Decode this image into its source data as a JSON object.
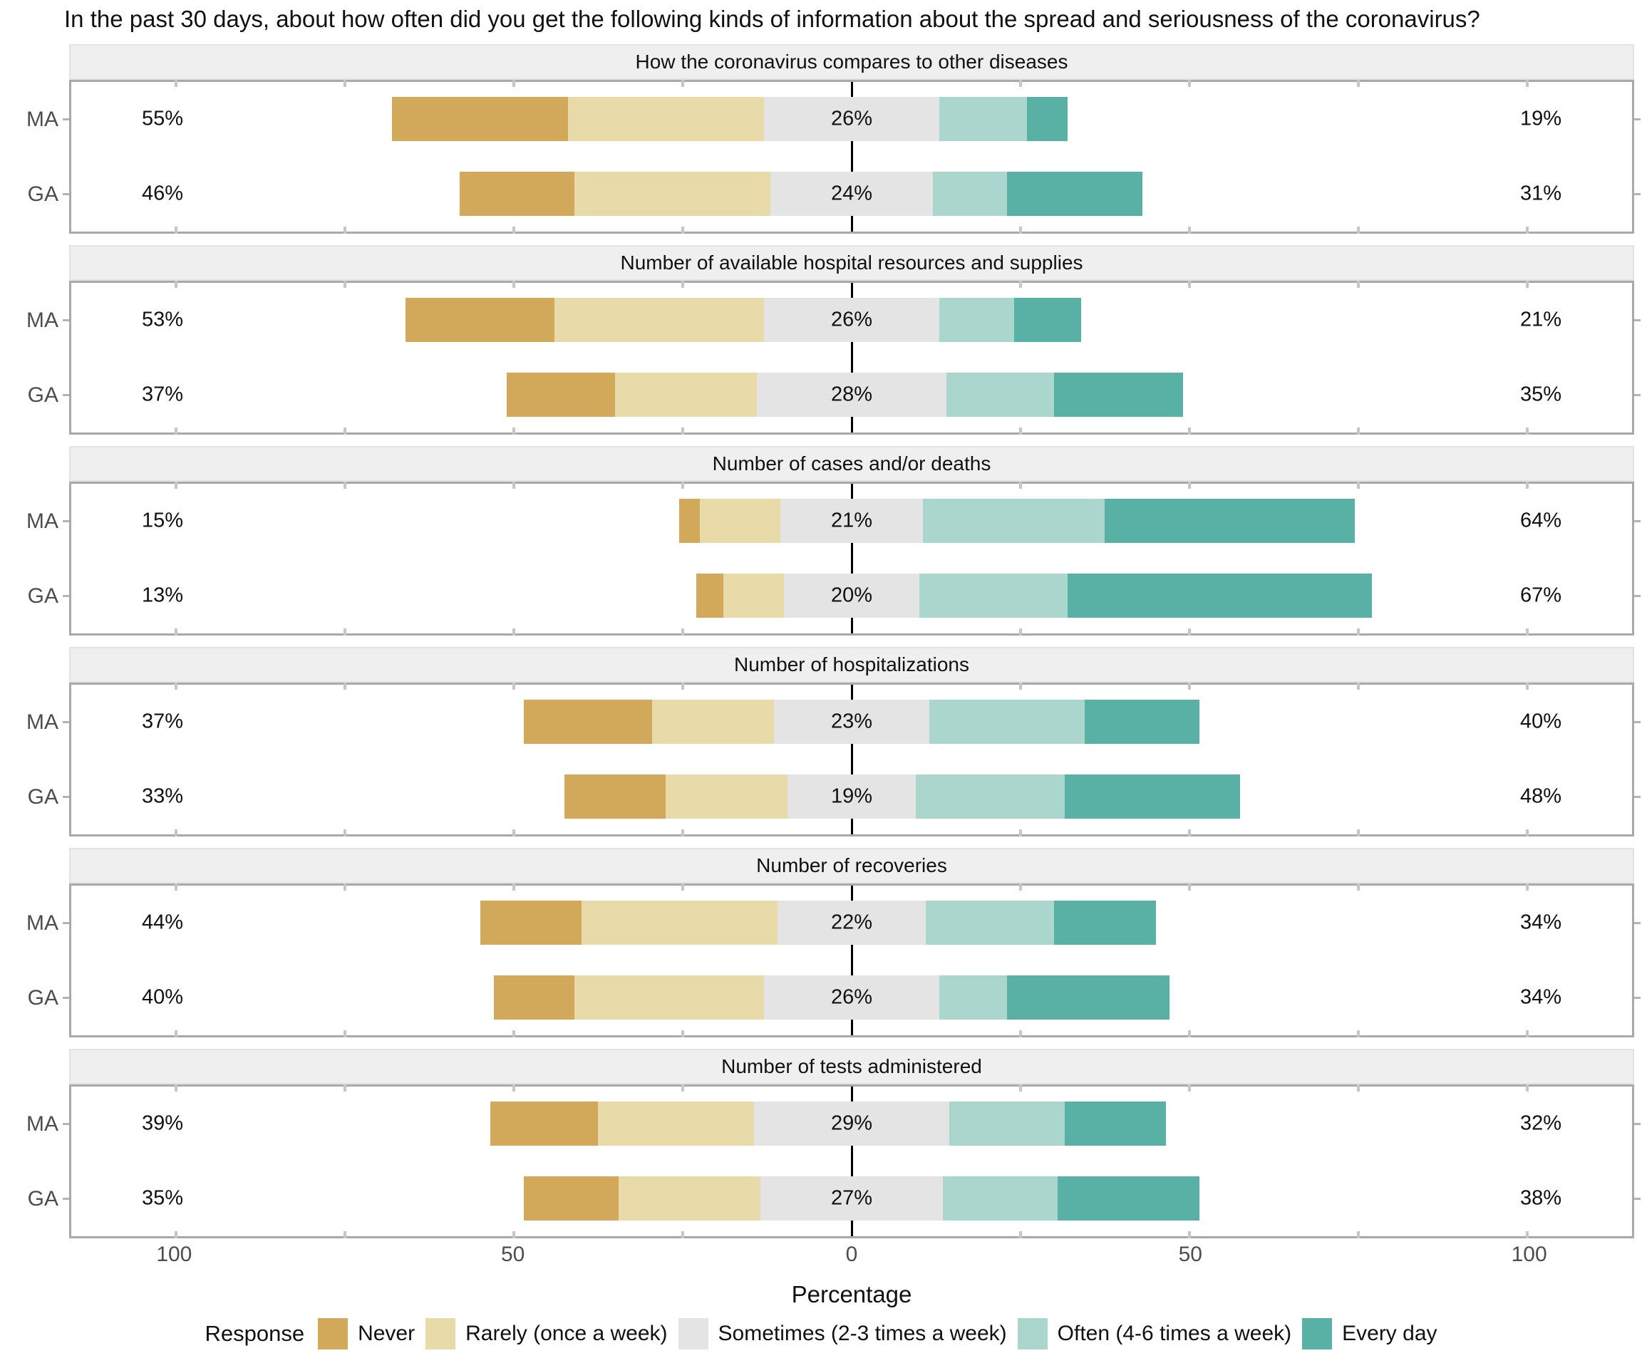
{
  "title": "In the past 30 days, about how often did you get the following kinds of information about the spread and seriousness of the coronavirus?",
  "legend": {
    "title": "Response",
    "items": [
      {
        "label": "Never",
        "color": "#D2A85A",
        "slug": "never"
      },
      {
        "label": "Rarely (once a week)",
        "color": "#E9DBA9",
        "slug": "rarely"
      },
      {
        "label": "Sometimes (2-3 times a week)",
        "color": "#E4E4E5",
        "slug": "sometimes"
      },
      {
        "label": "Often (4-6 times a week)",
        "color": "#ABD6CE",
        "slug": "often"
      },
      {
        "label": "Every day",
        "color": "#58B1A4",
        "slug": "every-day"
      }
    ]
  },
  "colors": {
    "panel_border": "#A9A9A9",
    "strip_background": "#EFEFEF",
    "axis_text": "#4D4D4D",
    "zero_line": "#000000",
    "tick_break": "#C6C6C6"
  },
  "chart_data": {
    "type": "bar",
    "subtype": "diverging_stacked_likert",
    "note": "Neutral category (Sometimes) is centered on 0; left % = Never+Rarely, right % = Often+Every day",
    "response_levels": [
      "Never",
      "Rarely (once a week)",
      "Sometimes (2-3 times a week)",
      "Often (4-6 times a week)",
      "Every day"
    ],
    "groups": [
      "MA",
      "GA"
    ],
    "xlabel": "Percentage",
    "xlim": [
      -115.5,
      115.5
    ],
    "x_ticks": [
      -100,
      -50,
      0,
      50,
      100
    ],
    "x_tick_labels": [
      "100",
      "50",
      "0",
      "50",
      "100"
    ],
    "border_ticks": [
      -100,
      -75,
      -50,
      -25,
      25,
      50,
      75,
      100
    ],
    "label_positions": {
      "left": -102,
      "center": 0,
      "right": 102
    },
    "panels": [
      {
        "title": "How the coronavirus compares to other diseases",
        "rows": [
          {
            "group": "MA",
            "values": [
              26,
              29,
              26,
              13,
              6
            ],
            "labels": {
              "left": "55%",
              "center": "26%",
              "right": "19%"
            }
          },
          {
            "group": "GA",
            "values": [
              17,
              29,
              24,
              11,
              20
            ],
            "labels": {
              "left": "46%",
              "center": "24%",
              "right": "31%"
            }
          }
        ]
      },
      {
        "title": "Number of available hospital resources and supplies",
        "rows": [
          {
            "group": "MA",
            "values": [
              22,
              31,
              26,
              11,
              10
            ],
            "labels": {
              "left": "53%",
              "center": "26%",
              "right": "21%"
            }
          },
          {
            "group": "GA",
            "values": [
              16,
              21,
              28,
              16,
              19
            ],
            "labels": {
              "left": "37%",
              "center": "28%",
              "right": "35%"
            }
          }
        ]
      },
      {
        "title": "Number of cases and/or deaths",
        "rows": [
          {
            "group": "MA",
            "values": [
              3,
              12,
              21,
              27,
              37
            ],
            "labels": {
              "left": "15%",
              "center": "21%",
              "right": "64%"
            }
          },
          {
            "group": "GA",
            "values": [
              4,
              9,
              20,
              22,
              45
            ],
            "labels": {
              "left": "13%",
              "center": "20%",
              "right": "67%"
            }
          }
        ]
      },
      {
        "title": "Number of hospitalizations",
        "rows": [
          {
            "group": "MA",
            "values": [
              19,
              18,
              23,
              23,
              17
            ],
            "labels": {
              "left": "37%",
              "center": "23%",
              "right": "40%"
            }
          },
          {
            "group": "GA",
            "values": [
              15,
              18,
              19,
              22,
              26
            ],
            "labels": {
              "left": "33%",
              "center": "19%",
              "right": "48%"
            }
          }
        ]
      },
      {
        "title": "Number of recoveries",
        "rows": [
          {
            "group": "MA",
            "values": [
              15,
              29,
              22,
              19,
              15
            ],
            "labels": {
              "left": "44%",
              "center": "22%",
              "right": "34%"
            }
          },
          {
            "group": "GA",
            "values": [
              12,
              28,
              26,
              10,
              24
            ],
            "labels": {
              "left": "40%",
              "center": "26%",
              "right": "34%"
            }
          }
        ]
      },
      {
        "title": "Number of tests administered",
        "rows": [
          {
            "group": "MA",
            "values": [
              16,
              23,
              29,
              17,
              15
            ],
            "labels": {
              "left": "39%",
              "center": "29%",
              "right": "32%"
            }
          },
          {
            "group": "GA",
            "values": [
              14,
              21,
              27,
              17,
              21
            ],
            "labels": {
              "left": "35%",
              "center": "27%",
              "right": "38%"
            }
          }
        ]
      }
    ]
  }
}
